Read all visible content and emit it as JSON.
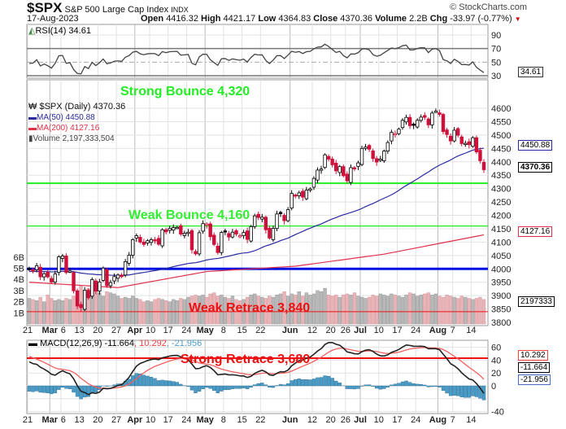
{
  "header": {
    "ticker": "$SPX",
    "name": "S&P 500 Large Cap Index",
    "exchange": "INDX",
    "brand": "© StockCharts.com",
    "date": "17-Aug-2023",
    "open_label": "Open",
    "open": "4416.32",
    "high_label": "High",
    "high": "4421.17",
    "low_label": "Low",
    "low": "4364.83",
    "close_label": "Close",
    "close": "4370.36",
    "volume_label": "Volume",
    "volume": "2.2B",
    "chg_label": "Chg",
    "chg": "-33.97 (-0.77%)"
  },
  "rsi": {
    "legend": "RSI(14) 34.61",
    "last": "34.61",
    "ticks": [
      90,
      70,
      50,
      30
    ]
  },
  "main": {
    "legend_price": "$SPX (Daily) 4370.36",
    "legend_ma50": "MA(50) 4450.88",
    "legend_ma200": "MA(200) 4127.16",
    "legend_volume": "Volume 2,197,333,504",
    "tag_ma50": "4450.88",
    "tag_close": "4370.36",
    "tag_ma200": "4127.16",
    "tag_volume": "2197333",
    "price_ticks": [
      4600,
      4550,
      4500,
      4450,
      4400,
      4350,
      4300,
      4250,
      4200,
      4150,
      4100,
      4050,
      4000,
      3950,
      3900,
      3850,
      3800
    ],
    "volume_ticks": [
      "6B",
      "5B",
      "4B",
      "3B",
      "2B",
      "1B"
    ]
  },
  "annotations": {
    "strong_bounce": {
      "text": "Strong Bounce 4,320",
      "level": 4320,
      "color": "#22ee22"
    },
    "weak_bounce": {
      "text": "Weak Bounce 4,160",
      "level": 4160,
      "color": "#33ee33"
    },
    "support": {
      "level": 4000,
      "color": "#0010e0"
    },
    "weak_retrace": {
      "text": "Weak Retrace 3,840",
      "level": 3840,
      "color": "#ee1111"
    },
    "strong_retrace": {
      "text": "Strong Retrace 3,680",
      "macd_level": 43,
      "color": "#ee1111"
    }
  },
  "macd": {
    "legend_name": "MACD(12,26,9)",
    "legend_macd": "-11.664",
    "legend_signal": ", 10.292",
    "legend_hist": ", -21.956",
    "tag_signal": "10.292",
    "tag_macd": "-11.664",
    "tag_hist": "-21.956",
    "ticks": [
      60,
      40,
      20,
      0,
      -40
    ]
  },
  "colors": {
    "ma50": "#2a2aa0",
    "ma200": "#e0304a",
    "up": "#000000",
    "down": "#d0103a",
    "vol_down": "#e8b4b8",
    "vol_up": "#b8b8b8",
    "hist": "#4a9cc8"
  },
  "chart_data": {
    "type": "candlestick",
    "title": "$SPX S&P 500 Large Cap Index (Daily)",
    "ylim": [
      3780,
      4620
    ],
    "x_ticks": [
      {
        "label": "21",
        "i": 0,
        "bold": false
      },
      {
        "label": "Mar",
        "i": 6,
        "bold": true
      },
      {
        "label": "6",
        "i": 9,
        "bold": false
      },
      {
        "label": "13",
        "i": 14,
        "bold": false
      },
      {
        "label": "20",
        "i": 19,
        "bold": false
      },
      {
        "label": "27",
        "i": 24,
        "bold": false
      },
      {
        "label": "Apr",
        "i": 29,
        "bold": true
      },
      {
        "label": "10",
        "i": 33,
        "bold": false
      },
      {
        "label": "17",
        "i": 38,
        "bold": false
      },
      {
        "label": "24",
        "i": 43,
        "bold": false
      },
      {
        "label": "May",
        "i": 48,
        "bold": true
      },
      {
        "label": "8",
        "i": 53,
        "bold": false
      },
      {
        "label": "15",
        "i": 58,
        "bold": false
      },
      {
        "label": "22",
        "i": 63,
        "bold": false
      },
      {
        "label": "Jun",
        "i": 71,
        "bold": true
      },
      {
        "label": "12",
        "i": 77,
        "bold": false
      },
      {
        "label": "20",
        "i": 82,
        "bold": false
      },
      {
        "label": "26",
        "i": 86,
        "bold": false
      },
      {
        "label": "Jul",
        "i": 90,
        "bold": true
      },
      {
        "label": "10",
        "i": 95,
        "bold": false
      },
      {
        "label": "17",
        "i": 100,
        "bold": false
      },
      {
        "label": "24",
        "i": 105,
        "bold": false
      },
      {
        "label": "Aug",
        "i": 111,
        "bold": true
      },
      {
        "label": "7",
        "i": 115,
        "bold": false
      },
      {
        "label": "14",
        "i": 120,
        "bold": false
      }
    ],
    "close": [
      3997,
      3991,
      4012,
      3970,
      3982,
      3970,
      3951,
      3981,
      4045,
      4048,
      3986,
      3992,
      3918,
      3861,
      3855,
      3920,
      3892,
      3960,
      3917,
      3951,
      4003,
      3937,
      3949,
      3971,
      3977,
      3971,
      4027,
      4051,
      4109,
      4124,
      4100,
      4091,
      4105,
      4109,
      4108,
      4092,
      4146,
      4138,
      4151,
      4154,
      4155,
      4130,
      4133,
      4137,
      4071,
      4056,
      4135,
      4169,
      4168,
      4120,
      4091,
      4061,
      4136,
      4138,
      4119,
      4137,
      4130,
      4124,
      4136,
      4110,
      4158,
      4198,
      4192,
      4193,
      4146,
      4115,
      4151,
      4205,
      4206,
      4180,
      4221,
      4282,
      4273,
      4284,
      4268,
      4294,
      4299,
      4338,
      4369,
      4373,
      4426,
      4410,
      4389,
      4366,
      4382,
      4348,
      4329,
      4378,
      4377,
      4396,
      4450,
      4455,
      4447,
      4412,
      4399,
      4410,
      4440,
      4472,
      4510,
      4505,
      4522,
      4555,
      4566,
      4535,
      4536,
      4555,
      4567,
      4566,
      4538,
      4582,
      4589,
      4577,
      4513,
      4502,
      4478,
      4518,
      4499,
      4468,
      4469,
      4464,
      4490,
      4437,
      4404,
      4370.36
    ],
    "volume_billions": [
      2.3,
      2.2,
      2.1,
      2.4,
      2.0,
      2.6,
      2.3,
      2.1,
      2.2,
      2.1,
      2.3,
      2.2,
      2.5,
      3.0,
      3.4,
      2.9,
      3.2,
      2.8,
      3.9,
      2.8,
      2.5,
      2.9,
      2.8,
      2.7,
      2.5,
      2.3,
      2.4,
      2.3,
      2.5,
      2.3,
      2.2,
      2.0,
      2.1,
      2.0,
      2.2,
      2.3,
      2.2,
      2.1,
      2.0,
      2.2,
      2.1,
      2.3,
      2.2,
      2.4,
      2.5,
      2.6,
      2.5,
      2.6,
      2.4,
      2.7,
      2.8,
      2.5,
      2.6,
      2.4,
      2.3,
      2.5,
      2.2,
      2.1,
      2.2,
      2.4,
      2.6,
      2.7,
      2.5,
      2.4,
      2.3,
      2.5,
      2.4,
      2.6,
      2.7,
      2.9,
      2.5,
      2.7,
      2.6,
      2.9,
      2.5,
      2.8,
      2.6,
      2.7,
      3.0,
      2.9,
      3.2,
      2.6,
      2.5,
      2.6,
      2.4,
      2.6,
      2.7,
      2.6,
      2.8,
      2.5,
      2.4,
      2.3,
      2.4,
      2.6,
      2.5,
      2.7,
      2.6,
      2.5,
      2.7,
      2.6,
      2.5,
      2.4,
      2.6,
      2.8,
      2.7,
      2.5,
      2.6,
      2.7,
      2.8,
      2.6,
      2.7,
      2.5,
      2.4,
      2.6,
      2.5,
      2.4,
      2.3,
      2.5,
      2.4,
      2.3,
      2.2,
      2.3,
      2.4,
      2.2
    ],
    "ma200_anchors": [
      [
        0,
        3950
      ],
      [
        24,
        3930
      ],
      [
        48,
        3990
      ],
      [
        72,
        4010
      ],
      [
        96,
        4055
      ],
      [
        123,
        4127.16
      ]
    ],
    "ma50_last": 4450.88,
    "ma200_last": 4127.16,
    "rsi_last": 34.61,
    "macd_last": -11.664,
    "signal_last": 10.292,
    "hist_last": -21.956
  }
}
